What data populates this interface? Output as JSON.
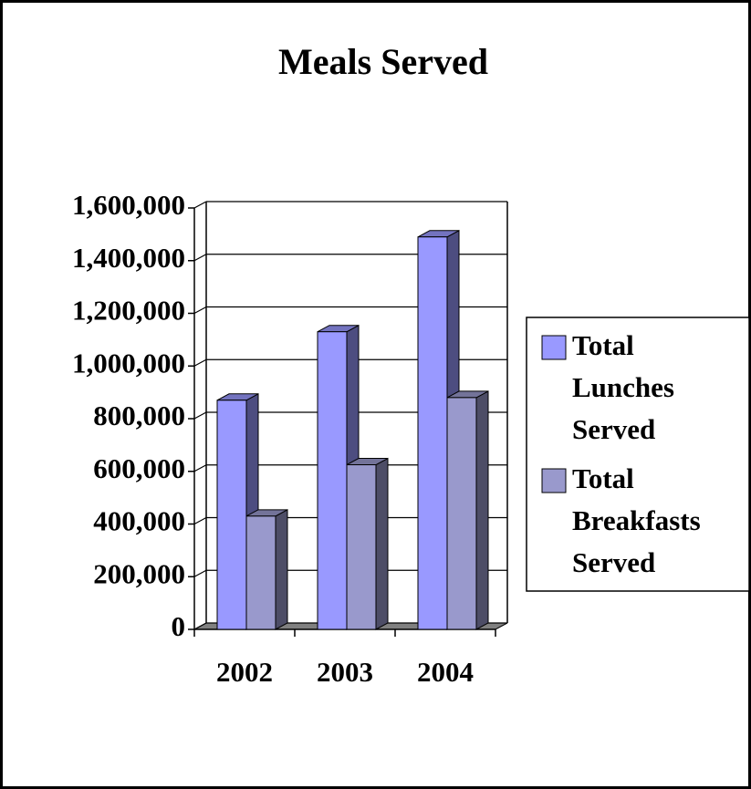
{
  "chart_data": {
    "type": "bar3d",
    "title": "Meals Served",
    "categories": [
      "2002",
      "2003",
      "2004"
    ],
    "series": [
      {
        "name": "Total Lunches Served",
        "color": "#9999ff",
        "values": [
          870000,
          1130000,
          1490000
        ]
      },
      {
        "name": "Total Breakfasts Served",
        "color": "#9999cc",
        "values": [
          430000,
          625000,
          880000
        ]
      }
    ],
    "ylim": [
      0,
      1600000
    ],
    "yticks": [
      0,
      {
        "value": 200000,
        "label": "200,000"
      },
      {
        "value": 400000,
        "label": "400,000"
      },
      {
        "value": 600000,
        "label": "600,000"
      },
      {
        "value": 800000,
        "label": "800,000"
      },
      {
        "value": 1000000,
        "label": "1,000,000"
      },
      {
        "value": 1200000,
        "label": "1,200,000"
      },
      {
        "value": 1400000,
        "label": "1,400,000"
      },
      {
        "value": 1600000,
        "label": "1,600,000"
      }
    ],
    "grid": true,
    "legend": "right"
  }
}
